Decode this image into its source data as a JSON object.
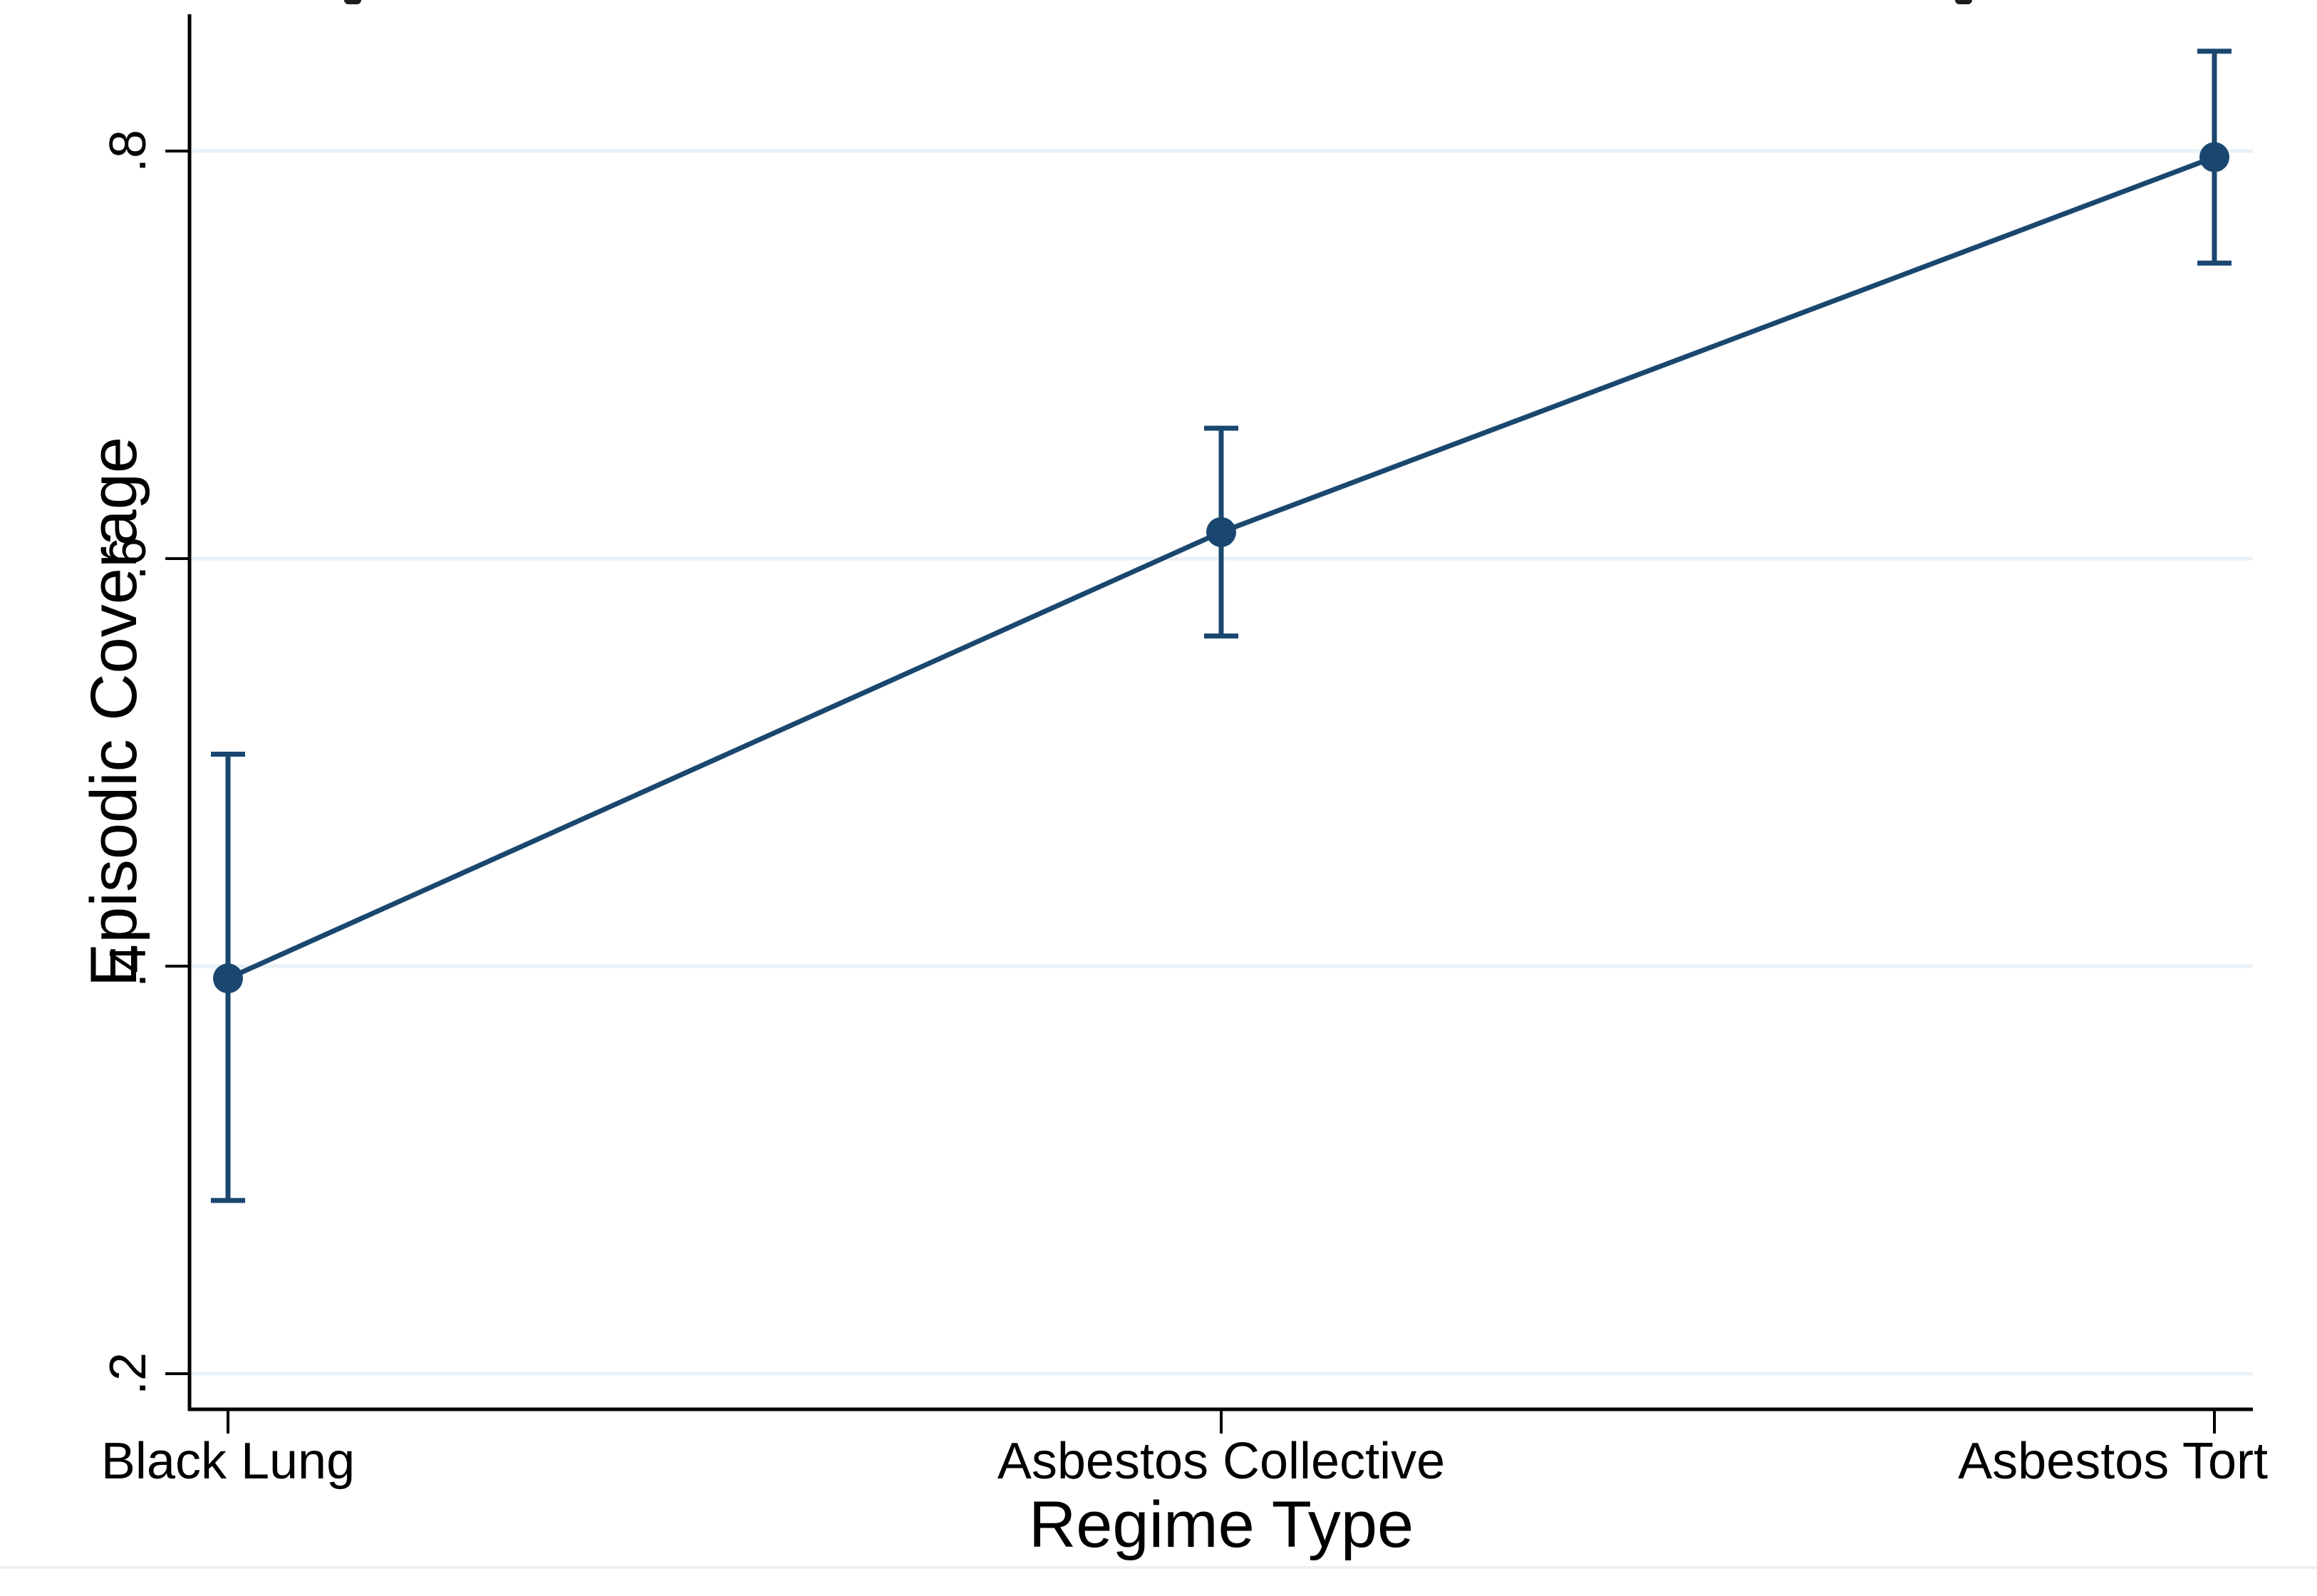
{
  "figure": {
    "background": "#ffffff",
    "colors": {
      "series": "#1a476f",
      "gridline": "#e9f1f6",
      "axis": "#000000",
      "text": "#000000",
      "bottom_rule": "#f1eff1"
    },
    "remnant_marks_x": [
      483,
      2744
    ]
  },
  "chart_data": {
    "type": "line",
    "title": "",
    "xlabel": "Regime Type",
    "ylabel": "Episodic Coverage",
    "categories": [
      "Black Lung",
      "Asbestos Collective",
      "Asbestos Tort"
    ],
    "series": [
      {
        "name": "Episodic Coverage",
        "values": [
          0.394,
          0.613,
          0.797
        ],
        "ci_lower": [
          0.285,
          0.562,
          0.745
        ],
        "ci_upper": [
          0.504,
          0.664,
          0.849
        ]
      }
    ],
    "error_bars": true,
    "marker": "circle",
    "y_ticks": [
      {
        "label": ".2",
        "value": 0.2
      },
      {
        "label": ".4",
        "value": 0.4
      },
      {
        "label": ".6",
        "value": 0.6
      },
      {
        "label": ".8",
        "value": 0.8
      }
    ],
    "ylim": [
      0.183,
      0.867
    ],
    "grid": "horizontal",
    "legend": "none"
  }
}
